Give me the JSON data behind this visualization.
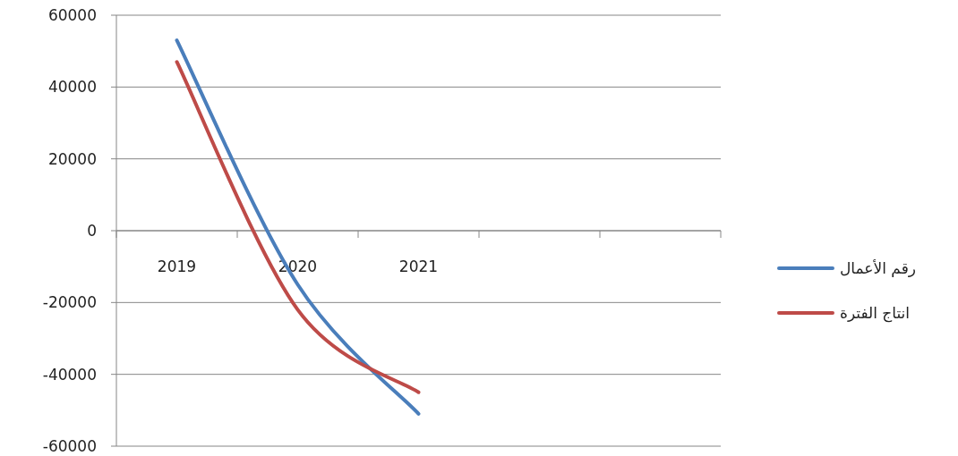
{
  "chart_data": {
    "type": "line",
    "categories": [
      "2019",
      "2020",
      "2021",
      null,
      null
    ],
    "series": [
      {
        "name": "رقم الأعمال",
        "color": "#4a7ebb",
        "values": [
          53000,
          -15000,
          -51000,
          null,
          null
        ]
      },
      {
        "name": "انتاج الفترة",
        "color": "#be4b48",
        "values": [
          47000,
          -22000,
          -45000,
          null,
          null
        ]
      }
    ],
    "ylim": [
      -60000,
      60000
    ],
    "yticks": [
      -60000,
      -40000,
      -20000,
      0,
      20000,
      40000,
      60000
    ],
    "grid": "y",
    "legend": "right"
  }
}
